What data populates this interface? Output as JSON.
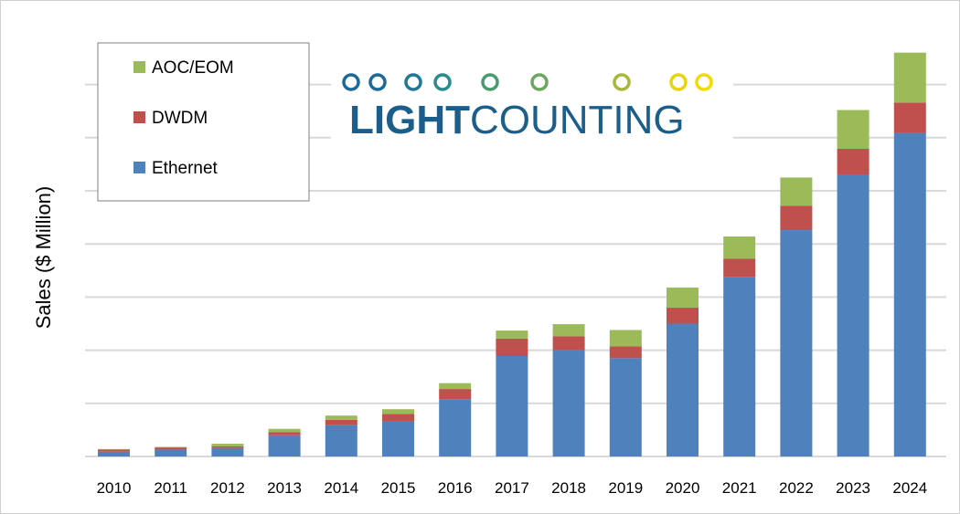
{
  "chart_data": {
    "type": "bar",
    "stacked": true,
    "title": "",
    "xlabel": "",
    "ylabel": "Sales ($ Million)",
    "y_tick_labels_shown": false,
    "ylim": [
      0,
      7.5
    ],
    "grid": true,
    "legend_placement": "top-left",
    "categories": [
      "2010",
      "2011",
      "2012",
      "2013",
      "2014",
      "2015",
      "2016",
      "2017",
      "2018",
      "2019",
      "2020",
      "2021",
      "2022",
      "2023",
      "2024"
    ],
    "series": [
      {
        "name": "Ethernet",
        "color": "#4f81bd",
        "values": [
          0.09,
          0.13,
          0.16,
          0.4,
          0.59,
          0.66,
          1.08,
          1.89,
          2.0,
          1.85,
          2.5,
          3.38,
          4.26,
          5.3,
          6.09
        ]
      },
      {
        "name": "DWDM",
        "color": "#c0504d",
        "values": [
          0.04,
          0.04,
          0.03,
          0.06,
          0.1,
          0.14,
          0.19,
          0.33,
          0.26,
          0.22,
          0.3,
          0.34,
          0.46,
          0.49,
          0.57
        ]
      },
      {
        "name": "AOC/EOM",
        "color": "#9bbb59",
        "values": [
          0.01,
          0.01,
          0.05,
          0.06,
          0.08,
          0.09,
          0.11,
          0.15,
          0.23,
          0.31,
          0.38,
          0.42,
          0.53,
          0.73,
          0.94
        ]
      }
    ],
    "legend_order": [
      "AOC/EOM",
      "DWDM",
      "Ethernet"
    ]
  },
  "logo": {
    "text_bold": "LIGHT",
    "text_regular": "COUNTING",
    "color": "#1b5e8c"
  }
}
